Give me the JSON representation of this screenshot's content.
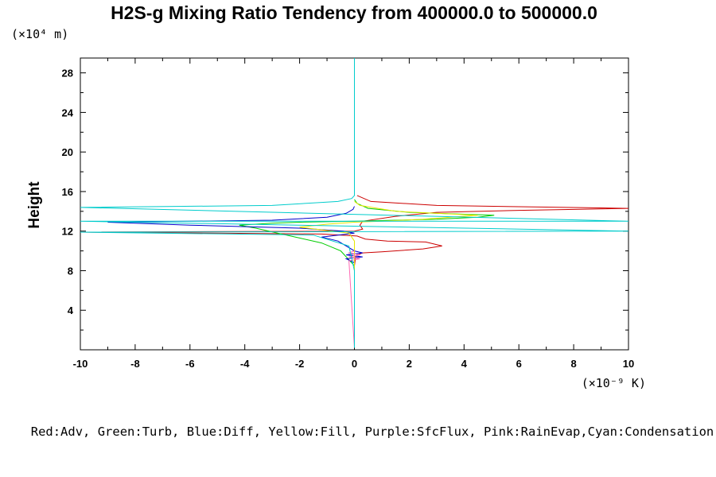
{
  "chart_data": {
    "type": "line",
    "title": "H2S-g Mixing Ratio Tendency from 400000.0 to 500000.0",
    "ylabel": "Height",
    "y_scale_label": "(×10⁴ m)",
    "x_scale_label": "(×10⁻⁹ K)",
    "xlim": [
      -10,
      10
    ],
    "ylim": [
      0,
      29.5
    ],
    "x_ticks": [
      -10,
      -8,
      -6,
      -4,
      -2,
      0,
      2,
      4,
      6,
      8,
      10
    ],
    "y_ticks": [
      4,
      8,
      12,
      16,
      20,
      24,
      28
    ],
    "x_tick_labels": [
      "-10",
      "-8",
      "-6",
      "-4",
      "-2",
      "0",
      "2",
      "4",
      "6",
      "8",
      "10"
    ],
    "y_tick_labels": [
      "4",
      "8",
      "12",
      "16",
      "20",
      "24",
      "28"
    ],
    "legend_text": "Red:Adv, Green:Turb, Blue:Diff, Yellow:Fill, Purple:SfcFlux, Pink:RainEvap,Cyan:Condensation",
    "series": [
      {
        "name": "Adv",
        "color": "#cc0000",
        "points": [
          [
            0,
            0.2
          ],
          [
            0,
            8.5
          ],
          [
            0.05,
            9.5
          ],
          [
            0.3,
            9.8
          ],
          [
            1,
            9.9
          ],
          [
            2.5,
            10.2
          ],
          [
            3.2,
            10.5
          ],
          [
            2.6,
            10.9
          ],
          [
            1.2,
            11
          ],
          [
            0.4,
            11.2
          ],
          [
            0.1,
            11.5
          ],
          [
            -1.2,
            11.7
          ],
          [
            -5,
            11.8
          ],
          [
            -10,
            11.9
          ],
          [
            0,
            12.0
          ],
          [
            0.3,
            12.2
          ],
          [
            0.2,
            12.6
          ],
          [
            0.3,
            13.0
          ],
          [
            1.5,
            13.5
          ],
          [
            3,
            13.9
          ],
          [
            6,
            14.1
          ],
          [
            10,
            14.3
          ],
          [
            3,
            14.6
          ],
          [
            0.6,
            15.0
          ],
          [
            0.1,
            15.6
          ]
        ]
      },
      {
        "name": "Turb",
        "color": "#00cc00",
        "points": [
          [
            0,
            0.2
          ],
          [
            0,
            8.5
          ],
          [
            -0.5,
            10.0
          ],
          [
            -1.2,
            10.8
          ],
          [
            -2.0,
            11.3
          ],
          [
            -2.8,
            11.8
          ],
          [
            -3.6,
            12.3
          ],
          [
            -4.2,
            12.6
          ],
          [
            -3.0,
            12.8
          ],
          [
            -2.0,
            12.9
          ],
          [
            0,
            13.0
          ],
          [
            1.5,
            13.1
          ],
          [
            3.0,
            13.2
          ],
          [
            4.5,
            13.4
          ],
          [
            5.1,
            13.6
          ],
          [
            2.0,
            13.9
          ],
          [
            0.5,
            14.3
          ],
          [
            0.1,
            14.8
          ],
          [
            0,
            15.2
          ]
        ]
      },
      {
        "name": "Diff",
        "color": "#0000cc",
        "points": [
          [
            0,
            0.2
          ],
          [
            0,
            8.8
          ],
          [
            -0.3,
            9.2
          ],
          [
            0.3,
            9.4
          ],
          [
            -0.3,
            9.6
          ],
          [
            0.3,
            9.8
          ],
          [
            0,
            10.0
          ],
          [
            -0.6,
            11.0
          ],
          [
            -1.2,
            11.4
          ],
          [
            0,
            11.8
          ],
          [
            -0.4,
            12.0
          ],
          [
            -2.0,
            12.3
          ],
          [
            -6.0,
            12.6
          ],
          [
            -9.0,
            12.9
          ],
          [
            -3.0,
            13.1
          ],
          [
            -1.0,
            13.4
          ],
          [
            -0.3,
            13.8
          ],
          [
            -0.05,
            14.2
          ],
          [
            0,
            14.5
          ]
        ]
      },
      {
        "name": "Fill",
        "color": "#e6e600",
        "points": [
          [
            0,
            0.2
          ],
          [
            0,
            11.0
          ],
          [
            -0.2,
            11.8
          ],
          [
            -2.0,
            12.4
          ],
          [
            -1.0,
            12.7
          ],
          [
            0,
            12.9
          ],
          [
            1.0,
            13.0
          ],
          [
            2.5,
            13.2
          ],
          [
            4.5,
            13.6
          ],
          [
            1.5,
            14.0
          ],
          [
            0.2,
            14.6
          ],
          [
            0,
            15.0
          ]
        ]
      },
      {
        "name": "SfcFlux",
        "color": "#800080",
        "points": [
          [
            0,
            0.2
          ],
          [
            0,
            0.6
          ]
        ]
      },
      {
        "name": "RainEvap",
        "color": "#ff69b4",
        "points": [
          [
            0,
            0.2
          ],
          [
            -0.2,
            9.0
          ],
          [
            0.2,
            9.2
          ],
          [
            -0.2,
            9.4
          ],
          [
            0.2,
            9.6
          ],
          [
            -0.2,
            9.8
          ],
          [
            0,
            10.0
          ]
        ]
      },
      {
        "name": "Condensation",
        "color": "#00cccc",
        "points": [
          [
            0,
            0.2
          ],
          [
            0,
            8.0
          ],
          [
            -0.2,
            10.5
          ],
          [
            -1.5,
            11.6
          ],
          [
            -10,
            11.9
          ],
          [
            10,
            12.0
          ],
          [
            -10,
            13.0
          ],
          [
            10,
            13.0
          ],
          [
            -10,
            14.4
          ],
          [
            -3,
            14.6
          ],
          [
            -0.6,
            15.0
          ],
          [
            -0.1,
            15.3
          ],
          [
            0,
            15.6
          ],
          [
            0,
            29.5
          ]
        ]
      }
    ]
  }
}
